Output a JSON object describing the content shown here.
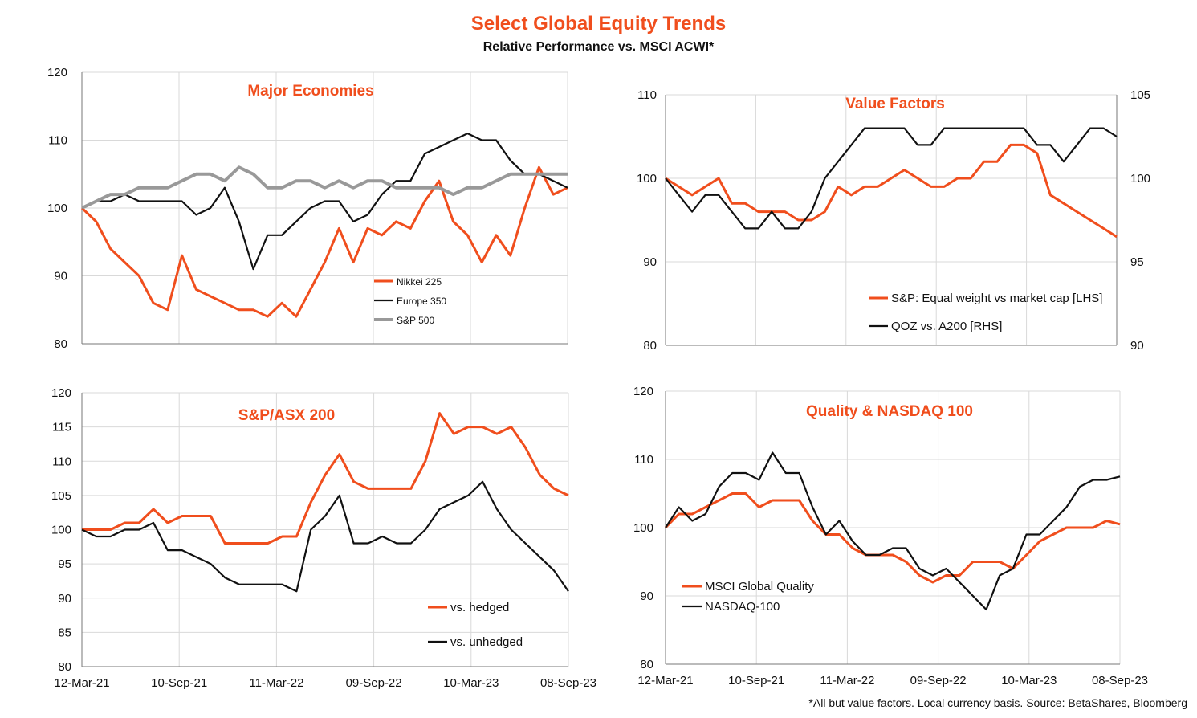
{
  "header": {
    "title": "Select Global Equity Trends",
    "subtitle": "Relative Performance vs. MSCI ACWI*"
  },
  "footnote": "*All but value factors. Local currency basis.  Source: BetaShares, Bloomberg",
  "colors": {
    "orange": "#f04e1d",
    "black": "#111111",
    "gray": "#999999",
    "grid": "#d9d9d9"
  },
  "chart_data": [
    {
      "type": "line",
      "title": "Major Economies",
      "x_ticks": [
        "12-Mar-21",
        "10-Sep-21",
        "11-Mar-22",
        "09-Sep-22",
        "10-Mar-23",
        "08-Sep-23"
      ],
      "show_x_labels": false,
      "ylim": [
        80,
        120
      ],
      "y_ticks": [
        "80",
        "90",
        "100",
        "110",
        "120"
      ],
      "grid": true,
      "legend_position": "center-right",
      "series": [
        {
          "name": "Nikkei 225",
          "color": "orange",
          "values": [
            100,
            98,
            94,
            92,
            90,
            86,
            85,
            93,
            88,
            87,
            86,
            85,
            85,
            84,
            86,
            84,
            88,
            92,
            97,
            92,
            97,
            96,
            98,
            97,
            101,
            104,
            98,
            96,
            92,
            96,
            93,
            100,
            106,
            102,
            103
          ]
        },
        {
          "name": "Europe 350",
          "color": "black",
          "values": [
            100,
            101,
            101,
            102,
            101,
            101,
            101,
            101,
            99,
            100,
            103,
            98,
            91,
            96,
            96,
            98,
            100,
            101,
            101,
            98,
            99,
            102,
            104,
            104,
            108,
            109,
            110,
            111,
            110,
            110,
            107,
            105,
            105,
            104,
            103
          ]
        },
        {
          "name": "S&P 500",
          "color": "gray",
          "values": [
            100,
            101,
            102,
            102,
            103,
            103,
            103,
            104,
            105,
            105,
            104,
            106,
            105,
            103,
            103,
            104,
            104,
            103,
            104,
            103,
            104,
            104,
            103,
            103,
            103,
            103,
            102,
            103,
            103,
            104,
            105,
            105,
            105,
            105,
            105
          ]
        }
      ]
    },
    {
      "type": "line",
      "title": "Value Factors",
      "x_ticks": [
        "12-Mar-21",
        "10-Sep-21",
        "11-Mar-22",
        "09-Sep-22",
        "10-Mar-23",
        "08-Sep-23"
      ],
      "show_x_labels": false,
      "ylim": [
        80,
        110
      ],
      "y_ticks": [
        "80",
        "90",
        "100",
        "110"
      ],
      "y2lim": [
        90,
        105
      ],
      "y2_ticks": [
        "90",
        "95",
        "100",
        "105"
      ],
      "grid": true,
      "legend_position": "bottom-right",
      "series": [
        {
          "name": "S&P: Equal weight vs market cap [LHS]",
          "color": "orange",
          "axis": "left",
          "values": [
            100,
            99,
            98,
            99,
            100,
            97,
            97,
            96,
            96,
            96,
            95,
            95,
            96,
            99,
            98,
            99,
            99,
            100,
            101,
            100,
            99,
            99,
            100,
            100,
            102,
            102,
            104,
            104,
            103,
            98,
            97,
            96,
            95,
            94,
            93
          ]
        },
        {
          "name": "QOZ vs. A200 [RHS]",
          "color": "black",
          "axis": "right",
          "values": [
            100,
            99,
            98,
            99,
            99,
            98,
            97,
            97,
            98,
            97,
            97,
            98,
            100,
            101,
            102,
            103,
            103,
            103,
            103,
            102,
            102,
            103,
            103,
            103,
            103,
            103,
            103,
            103,
            102,
            102,
            101,
            102,
            103,
            103,
            102.5
          ]
        }
      ]
    },
    {
      "type": "line",
      "title": "S&P/ASX 200",
      "x_ticks": [
        "12-Mar-21",
        "10-Sep-21",
        "11-Mar-22",
        "09-Sep-22",
        "10-Mar-23",
        "08-Sep-23"
      ],
      "show_x_labels": true,
      "ylim": [
        80,
        120
      ],
      "y_ticks": [
        "80",
        "85",
        "90",
        "95",
        "100",
        "105",
        "110",
        "115",
        "120"
      ],
      "grid": true,
      "legend_position": "bottom-right",
      "series": [
        {
          "name": "vs. hedged",
          "color": "orange",
          "values": [
            100,
            100,
            100,
            101,
            101,
            103,
            101,
            102,
            102,
            102,
            98,
            98,
            98,
            98,
            99,
            99,
            104,
            108,
            111,
            107,
            106,
            106,
            106,
            106,
            110,
            117,
            114,
            115,
            115,
            114,
            115,
            112,
            108,
            106,
            105
          ]
        },
        {
          "name": "vs. unhedged",
          "color": "black",
          "values": [
            100,
            99,
            99,
            100,
            100,
            101,
            97,
            97,
            96,
            95,
            93,
            92,
            92,
            92,
            92,
            91,
            100,
            102,
            105,
            98,
            98,
            99,
            98,
            98,
            100,
            103,
            104,
            105,
            107,
            103,
            100,
            98,
            96,
            94,
            91
          ]
        }
      ]
    },
    {
      "type": "line",
      "title": "Quality & NASDAQ 100",
      "x_ticks": [
        "12-Mar-21",
        "10-Sep-21",
        "11-Mar-22",
        "09-Sep-22",
        "10-Mar-23",
        "08-Sep-23"
      ],
      "show_x_labels": true,
      "ylim": [
        80,
        120
      ],
      "y_ticks": [
        "80",
        "90",
        "100",
        "110",
        "120"
      ],
      "grid": true,
      "legend_position": "bottom-left",
      "series": [
        {
          "name": "MSCI Global Quality",
          "color": "orange",
          "values": [
            100,
            102,
            102,
            103,
            104,
            105,
            105,
            103,
            104,
            104,
            104,
            101,
            99,
            99,
            97,
            96,
            96,
            96,
            95,
            93,
            92,
            93,
            93,
            95,
            95,
            95,
            94,
            96,
            98,
            99,
            100,
            100,
            100,
            101,
            100.5
          ]
        },
        {
          "name": "NASDAQ-100",
          "color": "black",
          "values": [
            100,
            103,
            101,
            102,
            106,
            108,
            108,
            107,
            111,
            108,
            108,
            103,
            99,
            101,
            98,
            96,
            96,
            97,
            97,
            94,
            93,
            94,
            92,
            90,
            88,
            93,
            94,
            99,
            99,
            101,
            103,
            106,
            107,
            107,
            107.5
          ]
        }
      ]
    }
  ]
}
